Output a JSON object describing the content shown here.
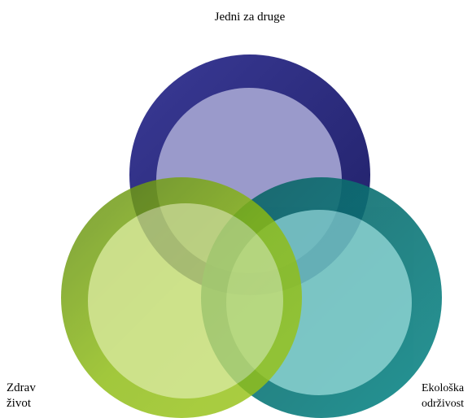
{
  "nodes": [
    {
      "label": "Jedni za druge"
    },
    {
      "label": "Zdrav život"
    },
    {
      "label": "Ekološka održivost"
    }
  ]
}
